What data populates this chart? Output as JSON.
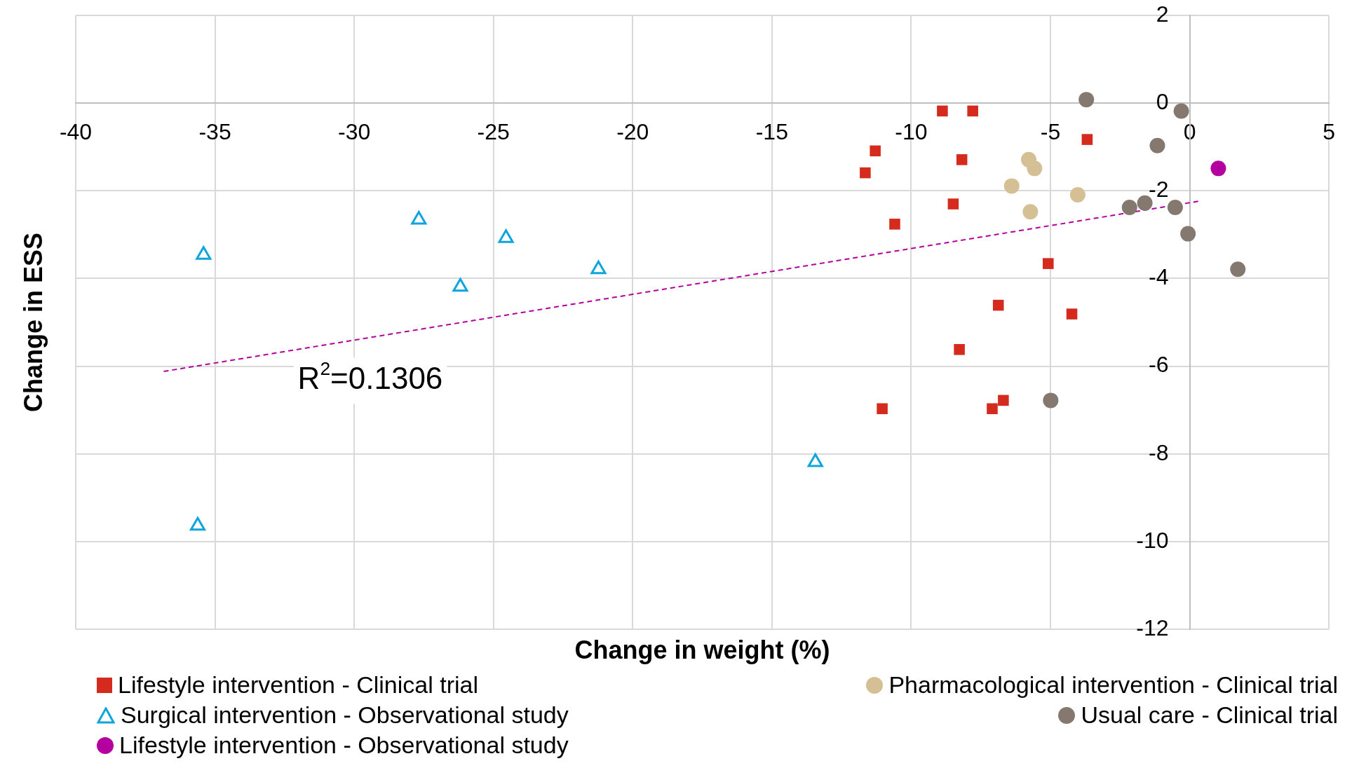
{
  "chart_data": {
    "type": "scatter",
    "xlabel": "Change in weight (%)",
    "ylabel": "Change in ESS",
    "xlim": [
      -40,
      5
    ],
    "xticks": [
      -40,
      -35,
      -30,
      -25,
      -20,
      -15,
      -10,
      -5,
      0,
      5
    ],
    "ylim": [
      -12,
      2
    ],
    "yticks": [
      -12,
      -10,
      -8,
      -6,
      -4,
      -2,
      0,
      2
    ],
    "grid": true,
    "legend": "bottom",
    "annotations": [
      "R$^{2}$=0.1306"
    ],
    "series": [
      {
        "name": "Lifestyle intervention - Clinical trial",
        "color": "#d52b1e",
        "marker": "square",
        "x": [
          -8.88,
          -7.79,
          -11.29,
          -11.65,
          -8.18,
          -3.68,
          -8.49,
          -10.59,
          -5.08,
          -6.87,
          -4.23,
          -8.27,
          -11.04,
          -7.09,
          -6.69
        ],
        "values": [
          -0.18,
          -0.18,
          -1.09,
          -1.59,
          -1.29,
          -0.83,
          -2.3,
          -2.76,
          -3.66,
          -4.61,
          -4.81,
          -5.62,
          -6.97,
          -6.97,
          -6.78
        ]
      },
      {
        "name": "Pharmacological intervention - Clinical trial",
        "color": "#d5c095",
        "marker": "circle",
        "x": [
          -5.78,
          -5.57,
          -6.39,
          -4.02,
          -5.72
        ],
        "values": [
          -1.29,
          -1.49,
          -1.89,
          -2.09,
          -2.48
        ]
      },
      {
        "name": "Surgical intervention - Observational study",
        "color": "#0ea5dc",
        "marker": "triangle",
        "x": [
          -35.41,
          -27.68,
          -24.55,
          -26.19,
          -21.23,
          -13.44,
          -35.62
        ],
        "values": [
          -3.46,
          -2.66,
          -3.08,
          -4.19,
          -3.79,
          -8.19,
          -9.64
        ]
      },
      {
        "name": "Usual care - Clinical trial",
        "color": "#85796f",
        "marker": "circle",
        "x": [
          -3.71,
          -0.3,
          -1.16,
          -2.16,
          -1.61,
          -0.52,
          -0.06,
          1.73,
          -4.99
        ],
        "values": [
          0.08,
          -0.18,
          -0.97,
          -2.38,
          -2.28,
          -2.38,
          -2.98,
          -3.79,
          -6.78
        ]
      },
      {
        "name": "Lifestyle intervention - Observational study",
        "color": "#b4009e",
        "marker": "circle",
        "x": [
          1.03
        ],
        "values": [
          -1.49
        ]
      },
      {
        "type": "line",
        "color": "#b4009e",
        "line_style": "dashed",
        "marker": "none",
        "x": [
          -36.84,
          0.4
        ],
        "values": [
          -6.12,
          -2.23
        ]
      }
    ]
  }
}
